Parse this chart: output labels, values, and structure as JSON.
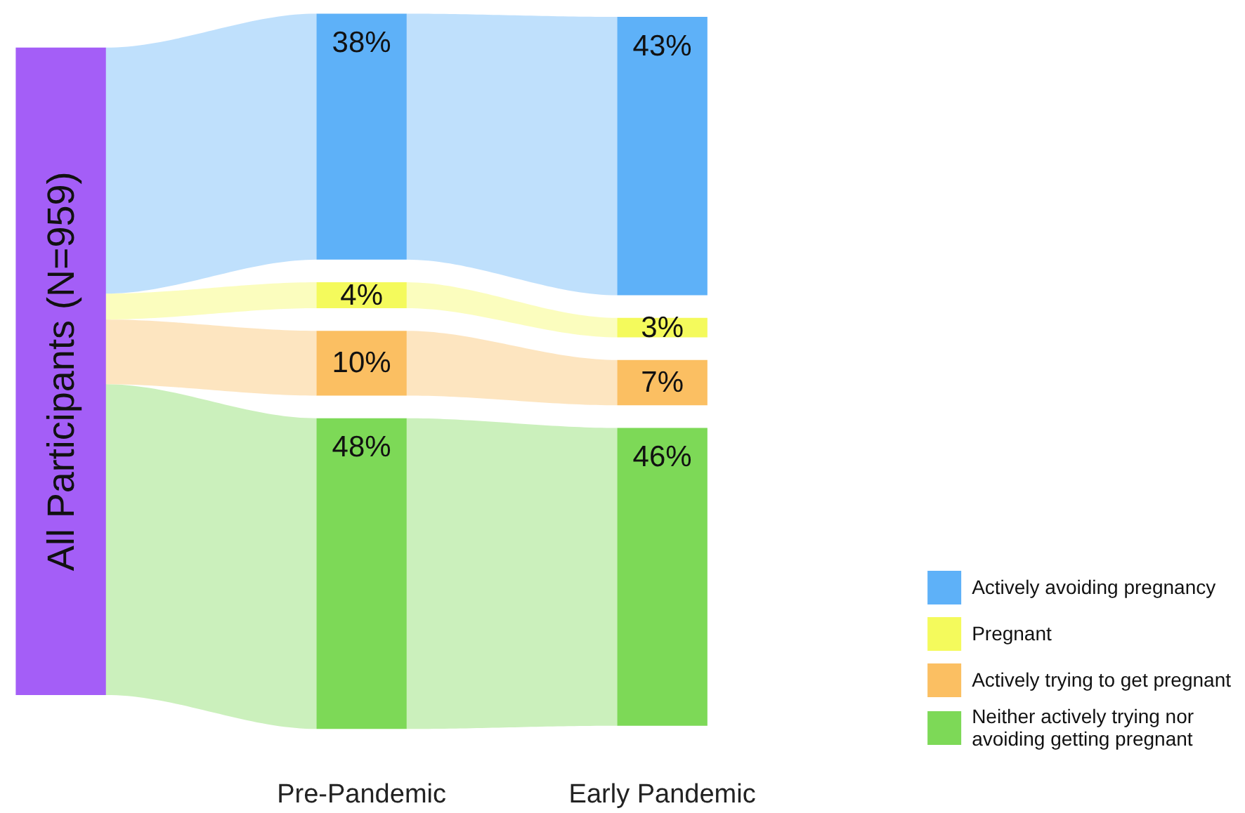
{
  "chart_data": {
    "type": "other",
    "legend": "bottom right",
    "categories": [
      null,
      "Pre-Pandemic",
      "Early Pandemic"
    ],
    "annotations": [
      "All Participants (N=959)"
    ],
    "colors": [
      "#a45ef7"
    ],
    "series": [
      {
        "name": "Actively avoiding pregnancy",
        "color": "#5eb1f8",
        "values": [
          null,
          38,
          43
        ],
        "value_labels": [
          null,
          "38%",
          "43%"
        ]
      },
      {
        "name": "Pregnant",
        "color": "#f4fa5c",
        "values": [
          null,
          4,
          3
        ],
        "value_labels": [
          null,
          "4%",
          "3%"
        ]
      },
      {
        "name": "Actively trying to get pregnant",
        "color": "#fbbf62",
        "values": [
          null,
          10,
          7
        ],
        "value_labels": [
          null,
          "10%",
          "7%"
        ]
      },
      {
        "name": "Neither actively trying nor avoiding getting pregnant",
        "color": "#7dd957",
        "values": [
          null,
          48,
          46
        ],
        "value_labels": [
          null,
          "48%",
          "46%"
        ]
      }
    ]
  }
}
